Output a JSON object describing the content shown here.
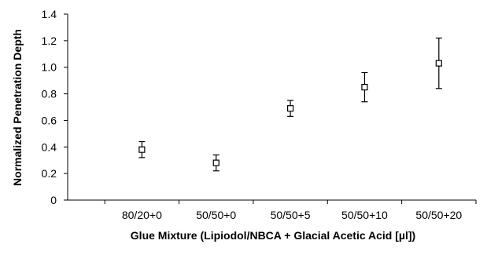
{
  "chart_data": {
    "type": "scatter",
    "title": "",
    "xlabel": "Glue Mixture (Lipiodol/NBCA + Glacial Acetic Acid [µl])",
    "ylabel": "Normalized Penetration Depth",
    "categories": [
      "80/20+0",
      "50/50+0",
      "50/50+5",
      "50/50+10",
      "50/50+20"
    ],
    "series": [
      {
        "values": [
          0.38,
          0.28,
          0.69,
          0.85,
          1.03
        ],
        "error_low": [
          0.32,
          0.22,
          0.63,
          0.74,
          0.84
        ],
        "error_high": [
          0.44,
          0.34,
          0.75,
          0.96,
          1.22
        ]
      }
    ],
    "ylim": [
      0,
      1.4
    ],
    "yticks": [
      "0",
      "0.2",
      "0.4",
      "0.6",
      "0.8",
      "1.0",
      "1.2",
      "1.4"
    ],
    "grid": false,
    "legend": "none",
    "marker": "open-square",
    "color": "#000000"
  }
}
